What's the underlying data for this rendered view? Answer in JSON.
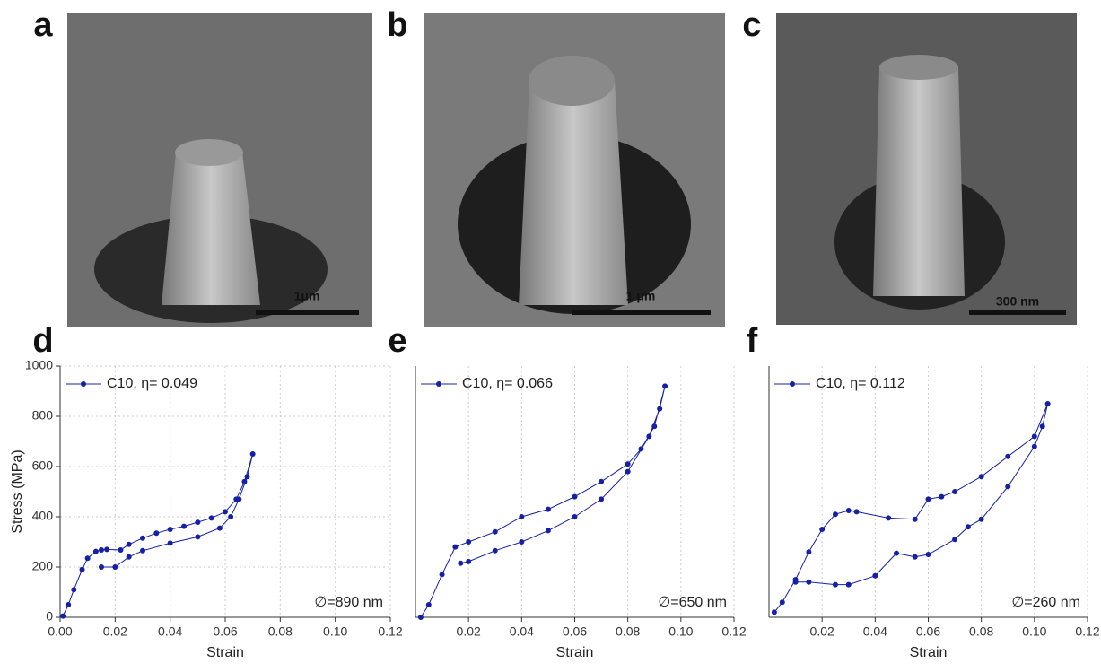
{
  "panels": [
    "a",
    "b",
    "c",
    "d",
    "e",
    "f"
  ],
  "scale_bars": [
    "1μm",
    "1 μm",
    "300 nm"
  ],
  "chart_data": [
    {
      "type": "line",
      "x_label": "Strain",
      "y_label": "Stress (MPa)",
      "annotation": "∅=890 nm",
      "xlim": [
        0,
        0.12
      ],
      "ylim": [
        0,
        1000
      ],
      "xticks": [
        {
          "value": 0,
          "label": "0.00"
        },
        0.02,
        0.04,
        0.06,
        0.08,
        {
          "value": 0.1,
          "label": "0.10"
        },
        0.12
      ],
      "yticks": [
        0,
        200,
        400,
        600,
        800,
        1000
      ],
      "grid": true,
      "x": [
        0.001,
        0.003,
        0.005,
        0.008,
        0.01,
        0.013,
        0.015,
        0.017,
        0.022,
        0.025,
        0.03,
        0.035,
        0.04,
        0.045,
        0.05,
        0.055,
        0.06,
        0.064,
        0.067,
        0.07,
        0.068,
        0.065,
        0.062,
        0.058,
        0.05,
        0.04,
        0.03,
        0.025,
        0.02,
        0.015
      ],
      "series": [
        {
          "name": "C10, η= 0.049",
          "color": "#1520a6",
          "values": [
            5,
            50,
            110,
            190,
            235,
            262,
            268,
            270,
            268,
            290,
            315,
            335,
            350,
            362,
            378,
            395,
            420,
            470,
            540,
            650,
            560,
            470,
            400,
            355,
            320,
            295,
            265,
            240,
            200,
            200
          ]
        }
      ]
    },
    {
      "type": "line",
      "x_label": "Strain",
      "annotation": "∅=650 nm",
      "xlim": [
        0,
        0.12
      ],
      "ylim": [
        0,
        1000
      ],
      "xticks": [
        0.02,
        0.04,
        0.06,
        0.08,
        {
          "value": 0.1,
          "label": "0.10"
        },
        0.12
      ],
      "grid": true,
      "x": [
        0.002,
        0.005,
        0.01,
        0.015,
        0.02,
        0.03,
        0.04,
        0.05,
        0.06,
        0.07,
        0.08,
        0.085,
        0.09,
        0.094,
        0.092,
        0.088,
        0.08,
        0.07,
        0.06,
        0.05,
        0.04,
        0.03,
        0.02,
        0.017
      ],
      "series": [
        {
          "name": "C10, η= 0.066",
          "color": "#1520a6",
          "values": [
            0,
            50,
            170,
            280,
            300,
            340,
            400,
            430,
            480,
            540,
            610,
            670,
            760,
            920,
            830,
            720,
            580,
            470,
            400,
            345,
            300,
            265,
            222,
            215
          ]
        }
      ]
    },
    {
      "type": "line",
      "x_label": "Strain",
      "annotation": "∅=260 nm",
      "xlim": [
        0,
        0.12
      ],
      "ylim": [
        0,
        1000
      ],
      "xticks": [
        0.02,
        0.04,
        0.06,
        0.08,
        {
          "value": 0.1,
          "label": "0.10"
        },
        0.12
      ],
      "grid": true,
      "x": [
        0.002,
        0.005,
        0.01,
        0.015,
        0.02,
        0.025,
        0.03,
        0.033,
        0.045,
        0.055,
        0.06,
        0.065,
        0.07,
        0.08,
        0.09,
        0.1,
        0.105,
        0.103,
        0.1,
        0.09,
        0.08,
        0.075,
        0.07,
        0.06,
        0.055,
        0.048,
        0.04,
        0.03,
        0.025,
        0.015,
        0.01
      ],
      "series": [
        {
          "name": "C10, η= 0.112",
          "color": "#1520a6",
          "values": [
            20,
            60,
            150,
            260,
            350,
            410,
            425,
            420,
            395,
            390,
            470,
            480,
            500,
            560,
            640,
            720,
            850,
            760,
            680,
            520,
            390,
            360,
            310,
            250,
            240,
            255,
            165,
            130,
            130,
            140,
            140
          ]
        }
      ]
    }
  ]
}
